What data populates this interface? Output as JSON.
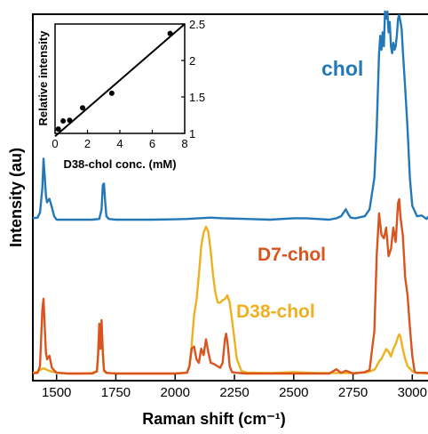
{
  "chart_data": [
    {
      "type": "line",
      "title": "",
      "xlabel": "Raman shift (cm⁻¹)",
      "ylabel": "Intensity (au)",
      "xlim": [
        1400,
        3070
      ],
      "x_ticks": [
        "1500",
        "1750",
        "2000",
        "2250",
        "2500",
        "2750",
        "3000"
      ],
      "y_ticks_visible": false,
      "grid": false,
      "legend": "none (curve labels placed next to curves)",
      "colors": {
        "chol": "#2379B8",
        "D7-chol": "#D9541E",
        "D38-chol": "#EDB120"
      },
      "series": [
        {
          "name": "chol",
          "label": "chol",
          "color": "#2379B8",
          "x": [
            1400,
            1420,
            1430,
            1440,
            1445,
            1450,
            1455,
            1460,
            1470,
            1480,
            1490,
            1500,
            1550,
            1600,
            1650,
            1680,
            1690,
            1695,
            1700,
            1705,
            1710,
            1720,
            1750,
            1800,
            1900,
            2000,
            2050,
            2100,
            2150,
            2200,
            2300,
            2400,
            2500,
            2550,
            2600,
            2650,
            2680,
            2700,
            2720,
            2730,
            2740,
            2760,
            2800,
            2820,
            2840,
            2850,
            2860,
            2865,
            2870,
            2875,
            2880,
            2885,
            2890,
            2895,
            2900,
            2905,
            2910,
            2915,
            2920,
            2925,
            2930,
            2935,
            2940,
            2945,
            2950,
            2955,
            2960,
            2970,
            2980,
            2990,
            3000,
            3020,
            3040,
            3060,
            3070
          ],
          "y": [
            0.02,
            0.03,
            0.1,
            0.45,
            0.88,
            0.62,
            0.35,
            0.25,
            0.3,
            0.18,
            0.05,
            0.0,
            0.0,
            0.0,
            0.0,
            0.01,
            0.15,
            0.5,
            0.52,
            0.25,
            0.05,
            0.01,
            0.0,
            0.0,
            0.0,
            0.005,
            0.01,
            0.02,
            0.03,
            0.02,
            0.01,
            0.0,
            0.02,
            0.02,
            0.01,
            0.0,
            0.02,
            0.05,
            0.15,
            0.08,
            0.03,
            0.02,
            0.05,
            0.15,
            0.6,
            1.3,
            2.4,
            2.65,
            2.45,
            2.7,
            2.5,
            3.0,
            2.9,
            3.0,
            2.7,
            2.85,
            2.5,
            2.4,
            2.55,
            2.45,
            2.5,
            2.65,
            2.9,
            2.95,
            2.85,
            2.75,
            2.45,
            1.9,
            1.3,
            0.6,
            0.2,
            0.05,
            0.06,
            0.01,
            0.05
          ]
        },
        {
          "name": "D7-chol",
          "label": "D7-chol",
          "color": "#D9541E",
          "x": [
            1400,
            1420,
            1430,
            1440,
            1445,
            1450,
            1455,
            1460,
            1470,
            1480,
            1500,
            1550,
            1600,
            1650,
            1670,
            1675,
            1680,
            1685,
            1690,
            1695,
            1700,
            1710,
            1750,
            1800,
            1900,
            2000,
            2050,
            2060,
            2070,
            2080,
            2090,
            2100,
            2110,
            2120,
            2130,
            2140,
            2150,
            2160,
            2170,
            2180,
            2190,
            2200,
            2210,
            2215,
            2220,
            2225,
            2230,
            2240,
            2260,
            2300,
            2400,
            2500,
            2600,
            2650,
            2680,
            2700,
            2720,
            2750,
            2800,
            2820,
            2840,
            2850,
            2860,
            2870,
            2880,
            2890,
            2900,
            2910,
            2920,
            2930,
            2940,
            2945,
            2950,
            2960,
            2970,
            2980,
            2990,
            3000,
            3010,
            3020,
            3040,
            3060,
            3070
          ],
          "y": [
            0.0,
            0.01,
            0.1,
            0.9,
            1.05,
            0.65,
            0.3,
            0.2,
            0.25,
            0.08,
            0.01,
            0.0,
            0.0,
            0.0,
            0.03,
            0.25,
            0.7,
            0.35,
            0.75,
            0.3,
            0.05,
            0.01,
            0.0,
            0.0,
            0.0,
            0.0,
            0.01,
            0.1,
            0.35,
            0.38,
            0.2,
            0.15,
            0.35,
            0.26,
            0.48,
            0.3,
            0.15,
            0.14,
            0.12,
            0.1,
            0.08,
            0.15,
            0.48,
            0.56,
            0.45,
            0.3,
            0.1,
            0.02,
            0.01,
            0.0,
            0.0,
            0.0,
            0.0,
            0.0,
            0.06,
            0.01,
            0.04,
            0.0,
            0.02,
            0.05,
            0.6,
            1.65,
            2.25,
            1.95,
            1.9,
            2.05,
            1.65,
            1.75,
            2.05,
            1.85,
            2.4,
            2.45,
            2.2,
            1.95,
            1.35,
            1.1,
            0.65,
            0.25,
            0.02,
            0.01,
            0.01,
            0.01,
            0.0
          ]
        },
        {
          "name": "D38-chol",
          "label": "D38-chol",
          "color": "#EDB120",
          "x": [
            1400,
            1420,
            1440,
            1450,
            1460,
            1480,
            1500,
            1550,
            1600,
            1650,
            1670,
            1675,
            1680,
            1685,
            1690,
            1695,
            1700,
            1710,
            1750,
            1800,
            1900,
            2000,
            2050,
            2060,
            2070,
            2080,
            2090,
            2100,
            2110,
            2120,
            2130,
            2140,
            2150,
            2160,
            2170,
            2180,
            2190,
            2200,
            2210,
            2220,
            2230,
            2240,
            2250,
            2260,
            2280,
            2300,
            2400,
            2500,
            2600,
            2650,
            2700,
            2750,
            2800,
            2820,
            2840,
            2850,
            2860,
            2870,
            2880,
            2890,
            2900,
            2910,
            2920,
            2930,
            2940,
            2945,
            2950,
            2960,
            2970,
            2980,
            2990,
            3000,
            3020,
            3040,
            3060,
            3070
          ],
          "y": [
            0.01,
            0.04,
            0.1,
            0.1,
            0.07,
            0.04,
            0.02,
            0.0,
            0.0,
            0.01,
            0.05,
            0.35,
            0.88,
            0.5,
            0.9,
            0.4,
            0.05,
            0.01,
            0.0,
            0.0,
            0.0,
            0.0,
            0.02,
            0.15,
            0.6,
            1.2,
            1.5,
            2.0,
            2.6,
            2.88,
            3.0,
            2.9,
            2.5,
            2.0,
            1.65,
            1.45,
            1.45,
            1.5,
            1.52,
            1.6,
            1.45,
            1.1,
            0.7,
            0.3,
            0.05,
            0.02,
            0.01,
            0.03,
            0.01,
            0.01,
            0.01,
            0.01,
            0.02,
            0.04,
            0.08,
            0.15,
            0.25,
            0.3,
            0.4,
            0.5,
            0.45,
            0.35,
            0.5,
            0.6,
            0.75,
            0.8,
            0.75,
            0.5,
            0.3,
            0.15,
            0.1,
            0.05,
            0.01,
            0.01,
            0.0,
            0.0
          ]
        }
      ]
    },
    {
      "type": "scatter",
      "title": "",
      "xlabel": "D38-chol conc. (mM)",
      "ylabel": "Relative intensity",
      "xlim": [
        0,
        8
      ],
      "ylim": [
        1,
        2.5
      ],
      "x_ticks": [
        "0",
        "2",
        "4",
        "6",
        "8"
      ],
      "y_ticks": [
        "1",
        "1.5",
        "2",
        "2.5"
      ],
      "grid": false,
      "series": [
        {
          "name": "",
          "x": [
            0.2,
            0.5,
            0.9,
            1.7,
            3.5,
            7.1
          ],
          "y": [
            1.06,
            1.17,
            1.18,
            1.35,
            1.55,
            2.37
          ]
        }
      ],
      "fit_line": {
        "x": [
          0,
          8
        ],
        "y": [
          0.96,
          2.5
        ]
      }
    }
  ]
}
